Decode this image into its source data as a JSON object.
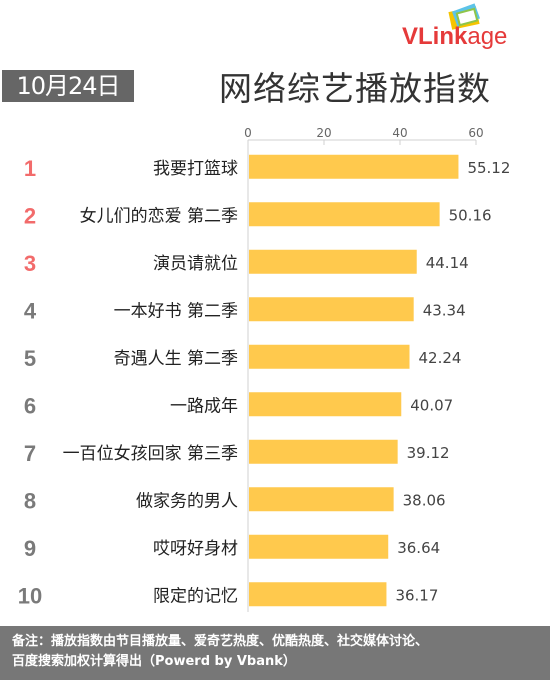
{
  "logo": {
    "text_a": "VL",
    "text_b": "ink",
    "text_c": "age"
  },
  "date_badge": "10月24日",
  "title": "网络综艺播放指数",
  "footer": {
    "line1": "备注：播放指数由节目播放量、爱奇艺热度、优酷热度、社交媒体讨论、",
    "line2": "百度搜索加权计算得出（Powerd by Vbank）"
  },
  "colors": {
    "bar": "#ffc94d",
    "rank_top": "#f26b6b",
    "rank_rest": "#7a7a7a",
    "footer_bg": "#777777"
  },
  "chart_data": {
    "type": "bar",
    "orientation": "horizontal",
    "categories": [
      "我要打篮球",
      "女儿们的恋爱 第二季",
      "演员请就位",
      "一本好书 第二季",
      "奇遇人生 第二季",
      "一路成年",
      "一百位女孩回家 第三季",
      "做家务的男人",
      "哎呀好身材",
      "限定的记忆"
    ],
    "ranks": [
      "1",
      "2",
      "3",
      "4",
      "5",
      "6",
      "7",
      "8",
      "9",
      "10"
    ],
    "values": [
      55.12,
      50.16,
      44.14,
      43.34,
      42.24,
      40.07,
      39.12,
      38.06,
      36.64,
      36.17
    ],
    "value_labels": [
      "55.12",
      "50.16",
      "44.14",
      "43.34",
      "42.24",
      "40.07",
      "39.12",
      "38.06",
      "36.64",
      "36.17"
    ],
    "xticks": [
      0,
      20,
      40,
      60
    ],
    "xlim": [
      0,
      60
    ],
    "axis_position": "top",
    "grid": false
  }
}
